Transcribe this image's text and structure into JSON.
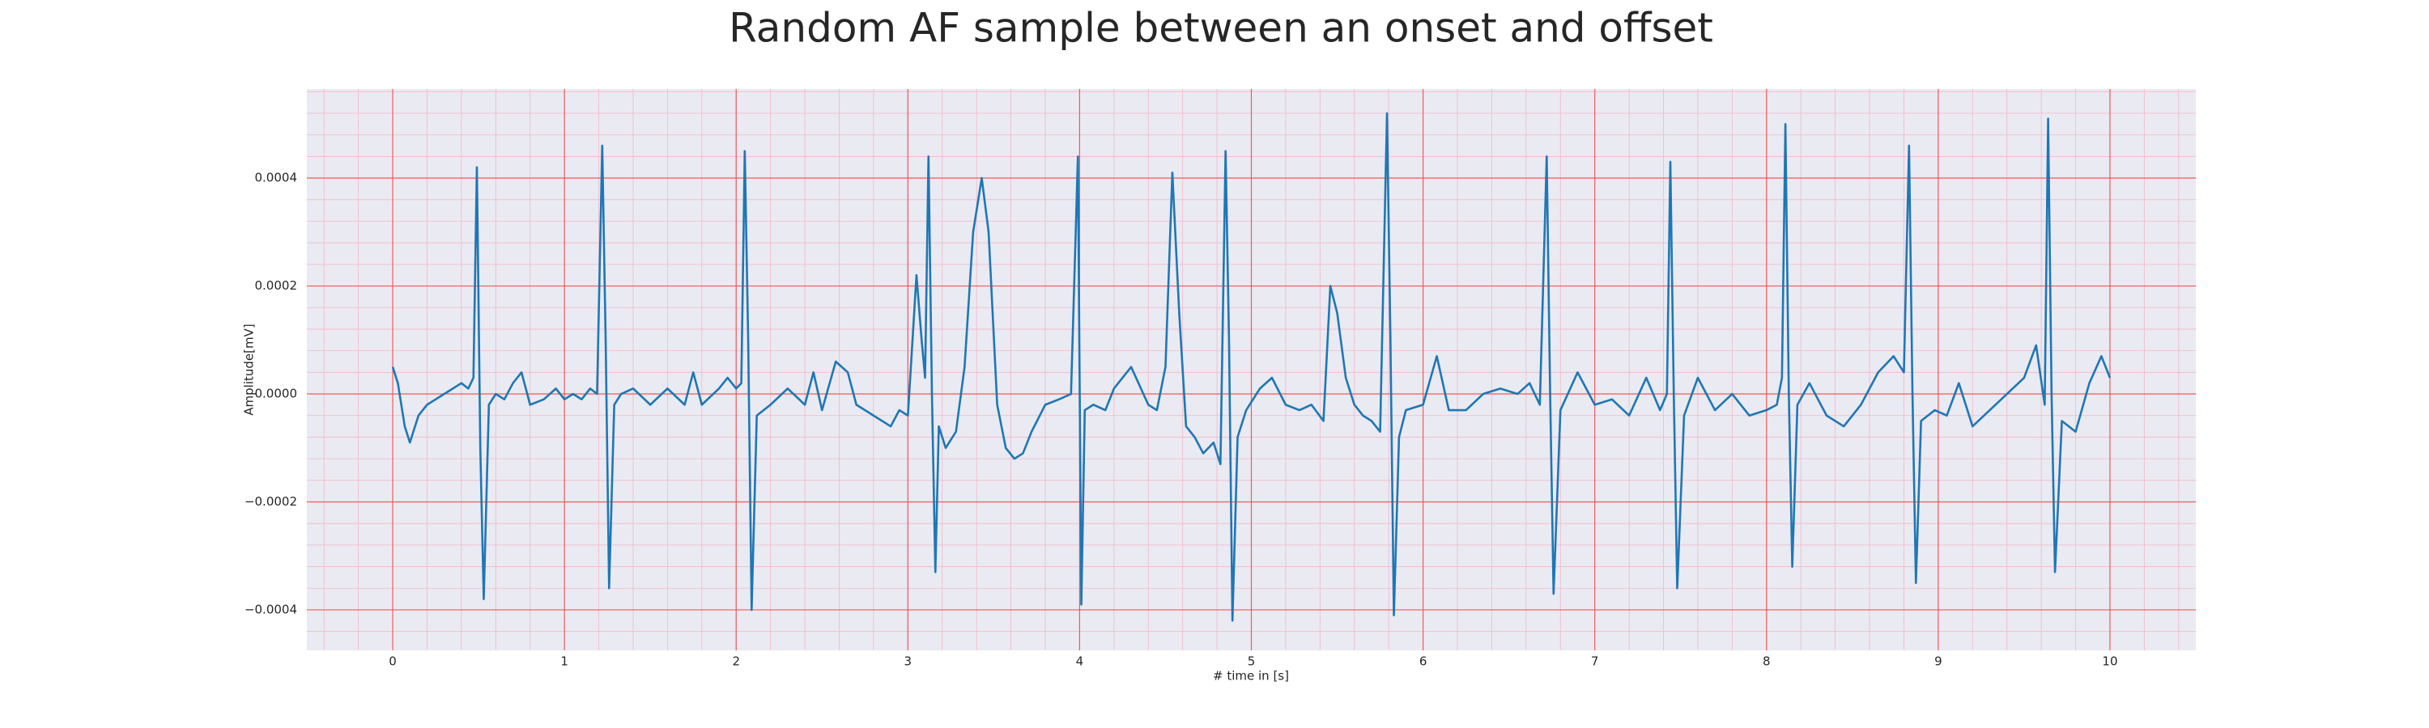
{
  "chart_data": {
    "type": "line",
    "title": "Random AF sample between an onset and offset",
    "xlabel": "# time in [s]",
    "ylabel": "Amplitude[mV]",
    "color": "#1f77b4",
    "grid": true,
    "minor_grid": true,
    "xlim": [
      -0.5,
      10.5
    ],
    "ylim": [
      -0.000475,
      0.000565
    ],
    "xticks": [
      0,
      1,
      2,
      3,
      4,
      5,
      6,
      7,
      8,
      9,
      10
    ],
    "yticks": [
      {
        "value": -0.0004,
        "label": "−0.0004"
      },
      {
        "value": -0.0002,
        "label": "−0.0002"
      },
      {
        "value": 0,
        "label": "0.0000"
      },
      {
        "value": 0.0002,
        "label": "0.0002"
      },
      {
        "value": 0.0004,
        "label": "0.0004"
      }
    ],
    "x": [
      0,
      0.03,
      0.07,
      0.1,
      0.15,
      0.2,
      0.25,
      0.3,
      0.35,
      0.4,
      0.44,
      0.47,
      0.49,
      0.51,
      0.53,
      0.56,
      0.6,
      0.65,
      0.7,
      0.75,
      0.8,
      0.88,
      0.95,
      1.0,
      1.05,
      1.1,
      1.15,
      1.19,
      1.22,
      1.24,
      1.26,
      1.29,
      1.33,
      1.4,
      1.5,
      1.6,
      1.7,
      1.75,
      1.8,
      1.9,
      1.95,
      2.0,
      2.03,
      2.05,
      2.07,
      2.09,
      2.12,
      2.2,
      2.3,
      2.4,
      2.45,
      2.5,
      2.58,
      2.65,
      2.7,
      2.8,
      2.9,
      2.95,
      3.0,
      3.05,
      3.08,
      3.1,
      3.12,
      3.14,
      3.16,
      3.18,
      3.22,
      3.28,
      3.33,
      3.38,
      3.43,
      3.47,
      3.52,
      3.57,
      3.62,
      3.67,
      3.72,
      3.8,
      3.88,
      3.95,
      3.99,
      4.01,
      4.03,
      4.08,
      4.15,
      4.2,
      4.3,
      4.4,
      4.45,
      4.5,
      4.54,
      4.58,
      4.62,
      4.67,
      4.72,
      4.78,
      4.82,
      4.85,
      4.87,
      4.89,
      4.92,
      4.97,
      5.05,
      5.12,
      5.2,
      5.28,
      5.35,
      5.42,
      5.46,
      5.5,
      5.55,
      5.6,
      5.65,
      5.7,
      5.75,
      5.79,
      5.81,
      5.83,
      5.86,
      5.9,
      6.0,
      6.08,
      6.15,
      6.25,
      6.35,
      6.45,
      6.55,
      6.62,
      6.68,
      6.72,
      6.74,
      6.76,
      6.8,
      6.9,
      7.0,
      7.1,
      7.2,
      7.3,
      7.38,
      7.42,
      7.44,
      7.46,
      7.48,
      7.52,
      7.6,
      7.7,
      7.8,
      7.9,
      8.0,
      8.06,
      8.09,
      8.11,
      8.13,
      8.15,
      8.18,
      8.25,
      8.35,
      8.45,
      8.55,
      8.65,
      8.74,
      8.8,
      8.83,
      8.85,
      8.87,
      8.9,
      8.98,
      9.05,
      9.12,
      9.2,
      9.3,
      9.4,
      9.5,
      9.57,
      9.62,
      9.64,
      9.66,
      9.68,
      9.72,
      9.8,
      9.88,
      9.95,
      10.0
    ],
    "values": [
      5e-05,
      2e-05,
      -6e-05,
      -9e-05,
      -4e-05,
      -2e-05,
      -1e-05,
      0,
      1e-05,
      2e-05,
      1e-05,
      3e-05,
      0.00042,
      -0.0001,
      -0.00038,
      -2e-05,
      0,
      -1e-05,
      2e-05,
      4e-05,
      -2e-05,
      -1e-05,
      1e-05,
      -1e-05,
      0,
      -1e-05,
      1e-05,
      0,
      0.00046,
      0.0001,
      -0.00036,
      -2e-05,
      0,
      1e-05,
      -2e-05,
      1e-05,
      -2e-05,
      4e-05,
      -2e-05,
      1e-05,
      3e-05,
      1e-05,
      2e-05,
      0.00045,
      0.0001,
      -0.0004,
      -4e-05,
      -2e-05,
      1e-05,
      -2e-05,
      4e-05,
      -3e-05,
      6e-05,
      4e-05,
      -2e-05,
      -4e-05,
      -6e-05,
      -3e-05,
      -4e-05,
      0.00022,
      0.0001,
      3e-05,
      0.00044,
      0,
      -0.00033,
      -6e-05,
      -0.0001,
      -7e-05,
      5e-05,
      0.0003,
      0.0004,
      0.0003,
      -2e-05,
      -0.0001,
      -0.00012,
      -0.00011,
      -7e-05,
      -2e-05,
      -1e-05,
      0,
      0.00044,
      -0.00039,
      -3e-05,
      -2e-05,
      -3e-05,
      1e-05,
      5e-05,
      -2e-05,
      -3e-05,
      5e-05,
      0.00041,
      0.00015,
      -6e-05,
      -8e-05,
      -0.00011,
      -9e-05,
      -0.00013,
      0.00045,
      0.0001,
      -0.00042,
      -8e-05,
      -3e-05,
      1e-05,
      3e-05,
      -2e-05,
      -3e-05,
      -2e-05,
      -5e-05,
      0.0002,
      0.00015,
      3e-05,
      -2e-05,
      -4e-05,
      -5e-05,
      -7e-05,
      0.00052,
      0.0001,
      -0.00041,
      -8e-05,
      -3e-05,
      -2e-05,
      7e-05,
      -3e-05,
      -3e-05,
      0,
      1e-05,
      0,
      2e-05,
      -2e-05,
      0.00044,
      0,
      -0.00037,
      -3e-05,
      4e-05,
      -2e-05,
      -1e-05,
      -4e-05,
      3e-05,
      -3e-05,
      0,
      0.00043,
      0,
      -0.00036,
      -4e-05,
      3e-05,
      -3e-05,
      0,
      -4e-05,
      -3e-05,
      -2e-05,
      3e-05,
      0.0005,
      0,
      -0.00032,
      -2e-05,
      2e-05,
      -4e-05,
      -6e-05,
      -2e-05,
      4e-05,
      7e-05,
      4e-05,
      0.00046,
      0,
      -0.00035,
      -5e-05,
      -3e-05,
      -4e-05,
      2e-05,
      -6e-05,
      -3e-05,
      0,
      3e-05,
      9e-05,
      -2e-05,
      0.00051,
      0,
      -0.00033,
      -5e-05,
      -7e-05,
      2e-05,
      7e-05,
      3e-05
    ]
  }
}
